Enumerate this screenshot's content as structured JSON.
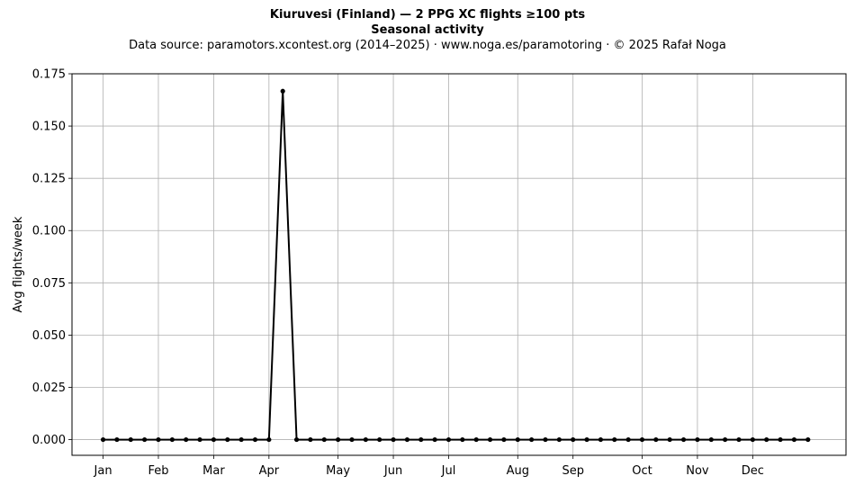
{
  "header": {
    "title_line1": "Kiuruvesi (Finland)  —  2 PPG XC flights ≥100 pts",
    "title_line2": "Seasonal activity",
    "subtitle": "Data source: paramotors.xcontest.org (2014–2025)  ·  www.noga.es/paramotoring  ·  © 2025 Rafał Noga"
  },
  "chart_data": {
    "type": "line",
    "ylabel": "Avg flights/week",
    "xlabel": "",
    "ylim": [
      -0.0075,
      0.175
    ],
    "yticks": [
      "0.000",
      "0.025",
      "0.050",
      "0.075",
      "0.100",
      "0.125",
      "0.150",
      "0.175"
    ],
    "x_axis": {
      "unit": "week of year",
      "range": [
        -1.25,
        54.75
      ],
      "month_ticks": [
        {
          "label": "Jan",
          "week": 1
        },
        {
          "label": "Feb",
          "week": 5
        },
        {
          "label": "Mar",
          "week": 9
        },
        {
          "label": "Apr",
          "week": 13
        },
        {
          "label": "May",
          "week": 18
        },
        {
          "label": "Jun",
          "week": 22
        },
        {
          "label": "Jul",
          "week": 26
        },
        {
          "label": "Aug",
          "week": 31
        },
        {
          "label": "Sep",
          "week": 35
        },
        {
          "label": "Oct",
          "week": 40
        },
        {
          "label": "Nov",
          "week": 44
        },
        {
          "label": "Dec",
          "week": 48
        }
      ]
    },
    "grid": true,
    "series": [
      {
        "color": "#000000",
        "x": [
          1,
          2,
          3,
          4,
          5,
          6,
          7,
          8,
          9,
          10,
          11,
          12,
          13,
          14,
          15,
          16,
          17,
          18,
          19,
          20,
          21,
          22,
          23,
          24,
          25,
          26,
          27,
          28,
          29,
          30,
          31,
          32,
          33,
          34,
          35,
          36,
          37,
          38,
          39,
          40,
          41,
          42,
          43,
          44,
          45,
          46,
          47,
          48,
          49,
          50,
          51,
          52
        ],
        "values": [
          0,
          0,
          0,
          0,
          0,
          0,
          0,
          0,
          0,
          0,
          0,
          0,
          0,
          0.1667,
          0,
          0,
          0,
          0,
          0,
          0,
          0,
          0,
          0,
          0,
          0,
          0,
          0,
          0,
          0,
          0,
          0,
          0,
          0,
          0,
          0,
          0,
          0,
          0,
          0,
          0,
          0,
          0,
          0,
          0,
          0,
          0,
          0,
          0,
          0,
          0,
          0,
          0
        ]
      }
    ]
  }
}
